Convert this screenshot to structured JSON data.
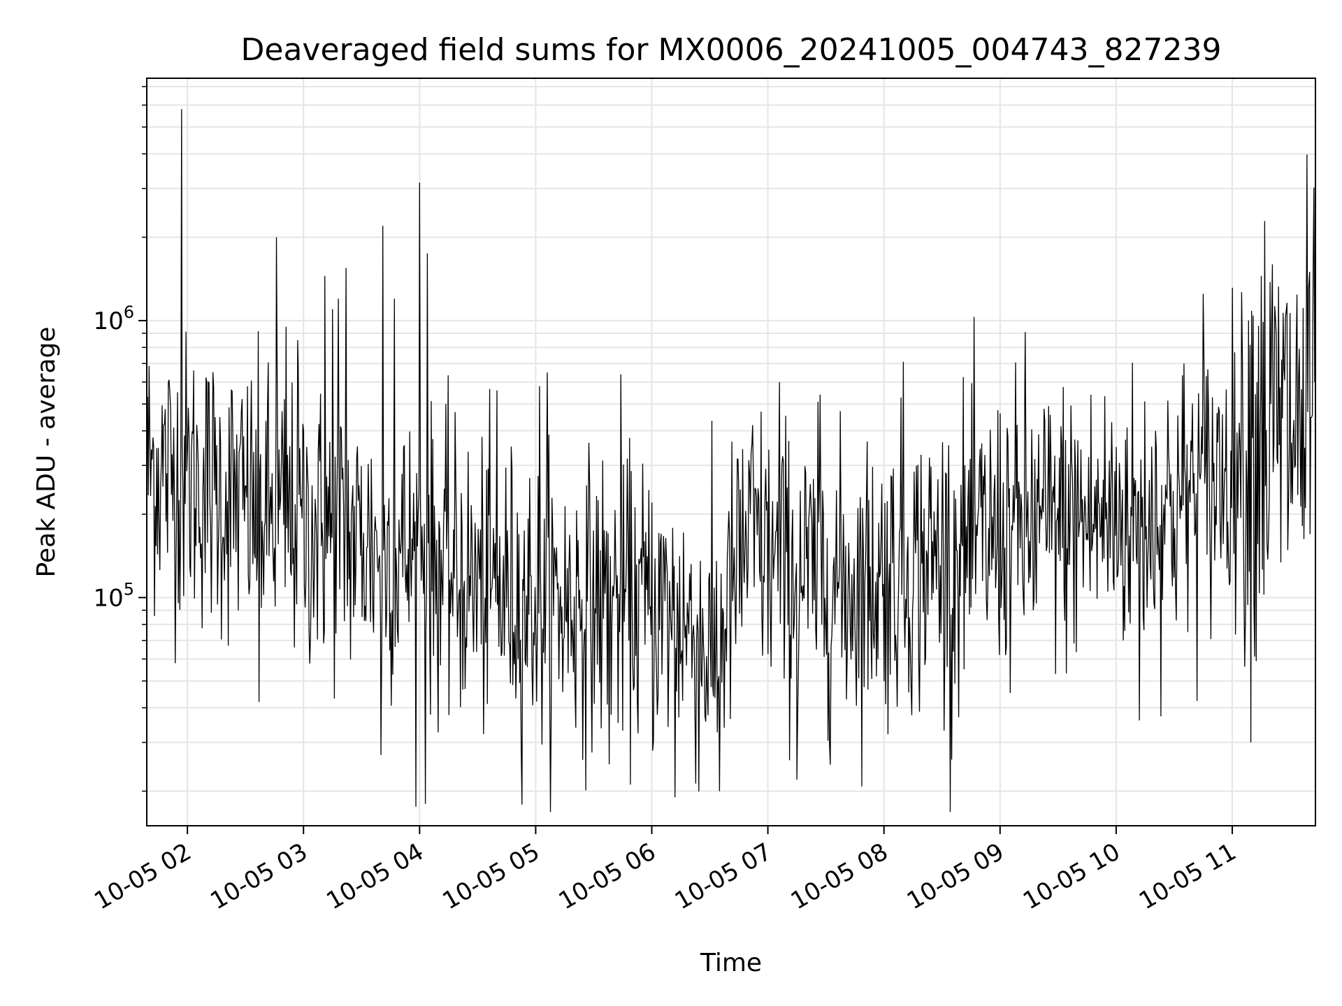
{
  "chart_data": {
    "type": "line",
    "title": "Deaveraged field sums for MX0006_20241005_004743_827239",
    "xlabel": "Time",
    "ylabel": "Peak ADU - average",
    "yscale": "log",
    "grid": true,
    "line_color": "#000000",
    "x_ticks": [
      "10-05 02",
      "10-05 03",
      "10-05 04",
      "10-05 05",
      "10-05 06",
      "10-05 07",
      "10-05 08",
      "10-05 09",
      "10-05 10",
      "10-05 11"
    ],
    "y_ticks": [
      {
        "base": "10",
        "exp": "5",
        "value": 100000
      },
      {
        "base": "10",
        "exp": "6",
        "value": 1000000
      }
    ],
    "xlim": [
      "2024-10-05 01:39",
      "2024-10-05 11:43"
    ],
    "ylim": [
      15000,
      7500000
    ],
    "series": [
      {
        "trend_points": [
          {
            "t": "2024-10-05 01:39",
            "value": 300000
          },
          {
            "t": "2024-10-05 02:00",
            "value": 270000
          },
          {
            "t": "2024-10-05 02:40",
            "value": 200000
          },
          {
            "t": "2024-10-05 03:30",
            "value": 160000
          },
          {
            "t": "2024-10-05 04:00",
            "value": 140000
          },
          {
            "t": "2024-10-05 04:30",
            "value": 110000
          },
          {
            "t": "2024-10-05 05:10",
            "value": 95000
          },
          {
            "t": "2024-10-05 05:45",
            "value": 100000
          },
          {
            "t": "2024-10-05 06:15",
            "value": 85000
          },
          {
            "t": "2024-10-05 06:32",
            "value": 60000
          },
          {
            "t": "2024-10-05 06:50",
            "value": 170000
          },
          {
            "t": "2024-10-05 07:05",
            "value": 130000
          },
          {
            "t": "2024-10-05 07:40",
            "value": 110000
          },
          {
            "t": "2024-10-05 08:30",
            "value": 140000
          },
          {
            "t": "2024-10-05 09:00",
            "value": 170000
          },
          {
            "t": "2024-10-05 09:30",
            "value": 185000
          },
          {
            "t": "2024-10-05 10:20",
            "value": 200000
          },
          {
            "t": "2024-10-05 10:50",
            "value": 260000
          },
          {
            "t": "2024-10-05 11:10",
            "value": 380000
          },
          {
            "t": "2024-10-05 11:43",
            "value": 420000
          }
        ],
        "spikes": [
          {
            "t": "2024-10-05 01:57",
            "value": 5800000
          },
          {
            "t": "2024-10-05 02:46",
            "value": 2000000
          },
          {
            "t": "2024-10-05 02:51",
            "value": 950000
          },
          {
            "t": "2024-10-05 02:57",
            "value": 850000
          },
          {
            "t": "2024-10-05 03:11",
            "value": 1450000
          },
          {
            "t": "2024-10-05 03:15",
            "value": 1100000
          },
          {
            "t": "2024-10-05 03:18",
            "value": 1200000
          },
          {
            "t": "2024-10-05 03:22",
            "value": 1550000
          },
          {
            "t": "2024-10-05 03:41",
            "value": 2200000
          },
          {
            "t": "2024-10-05 03:47",
            "value": 1200000
          },
          {
            "t": "2024-10-05 04:00",
            "value": 3150000
          },
          {
            "t": "2024-10-05 04:04",
            "value": 1750000
          },
          {
            "t": "2024-10-05 04:40",
            "value": 560000
          },
          {
            "t": "2024-10-05 05:06",
            "value": 650000
          },
          {
            "t": "2024-10-05 05:02",
            "value": 580000
          },
          {
            "t": "2024-10-05 05:44",
            "value": 640000
          },
          {
            "t": "2024-10-05 07:06",
            "value": 600000
          },
          {
            "t": "2024-10-05 07:27",
            "value": 540000
          },
          {
            "t": "2024-10-05 08:10",
            "value": 710000
          },
          {
            "t": "2024-10-05 09:13",
            "value": 910000
          },
          {
            "t": "2024-10-05 10:45",
            "value": 1250000
          },
          {
            "t": "2024-10-05 11:15",
            "value": 1450000
          },
          {
            "t": "2024-10-05 11:40",
            "value": 1500000
          }
        ],
        "dips": [
          {
            "t": "2024-10-05 02:37",
            "value": 42000
          },
          {
            "t": "2024-10-05 03:40",
            "value": 27000
          },
          {
            "t": "2024-10-05 04:03",
            "value": 18000
          },
          {
            "t": "2024-10-05 05:38",
            "value": 25000
          },
          {
            "t": "2024-10-05 06:12",
            "value": 19000
          },
          {
            "t": "2024-10-05 06:35",
            "value": 20000
          },
          {
            "t": "2024-10-05 07:15",
            "value": 22000
          },
          {
            "t": "2024-10-05 08:35",
            "value": 26000
          },
          {
            "t": "2024-10-05 10:12",
            "value": 36000
          }
        ]
      }
    ]
  }
}
